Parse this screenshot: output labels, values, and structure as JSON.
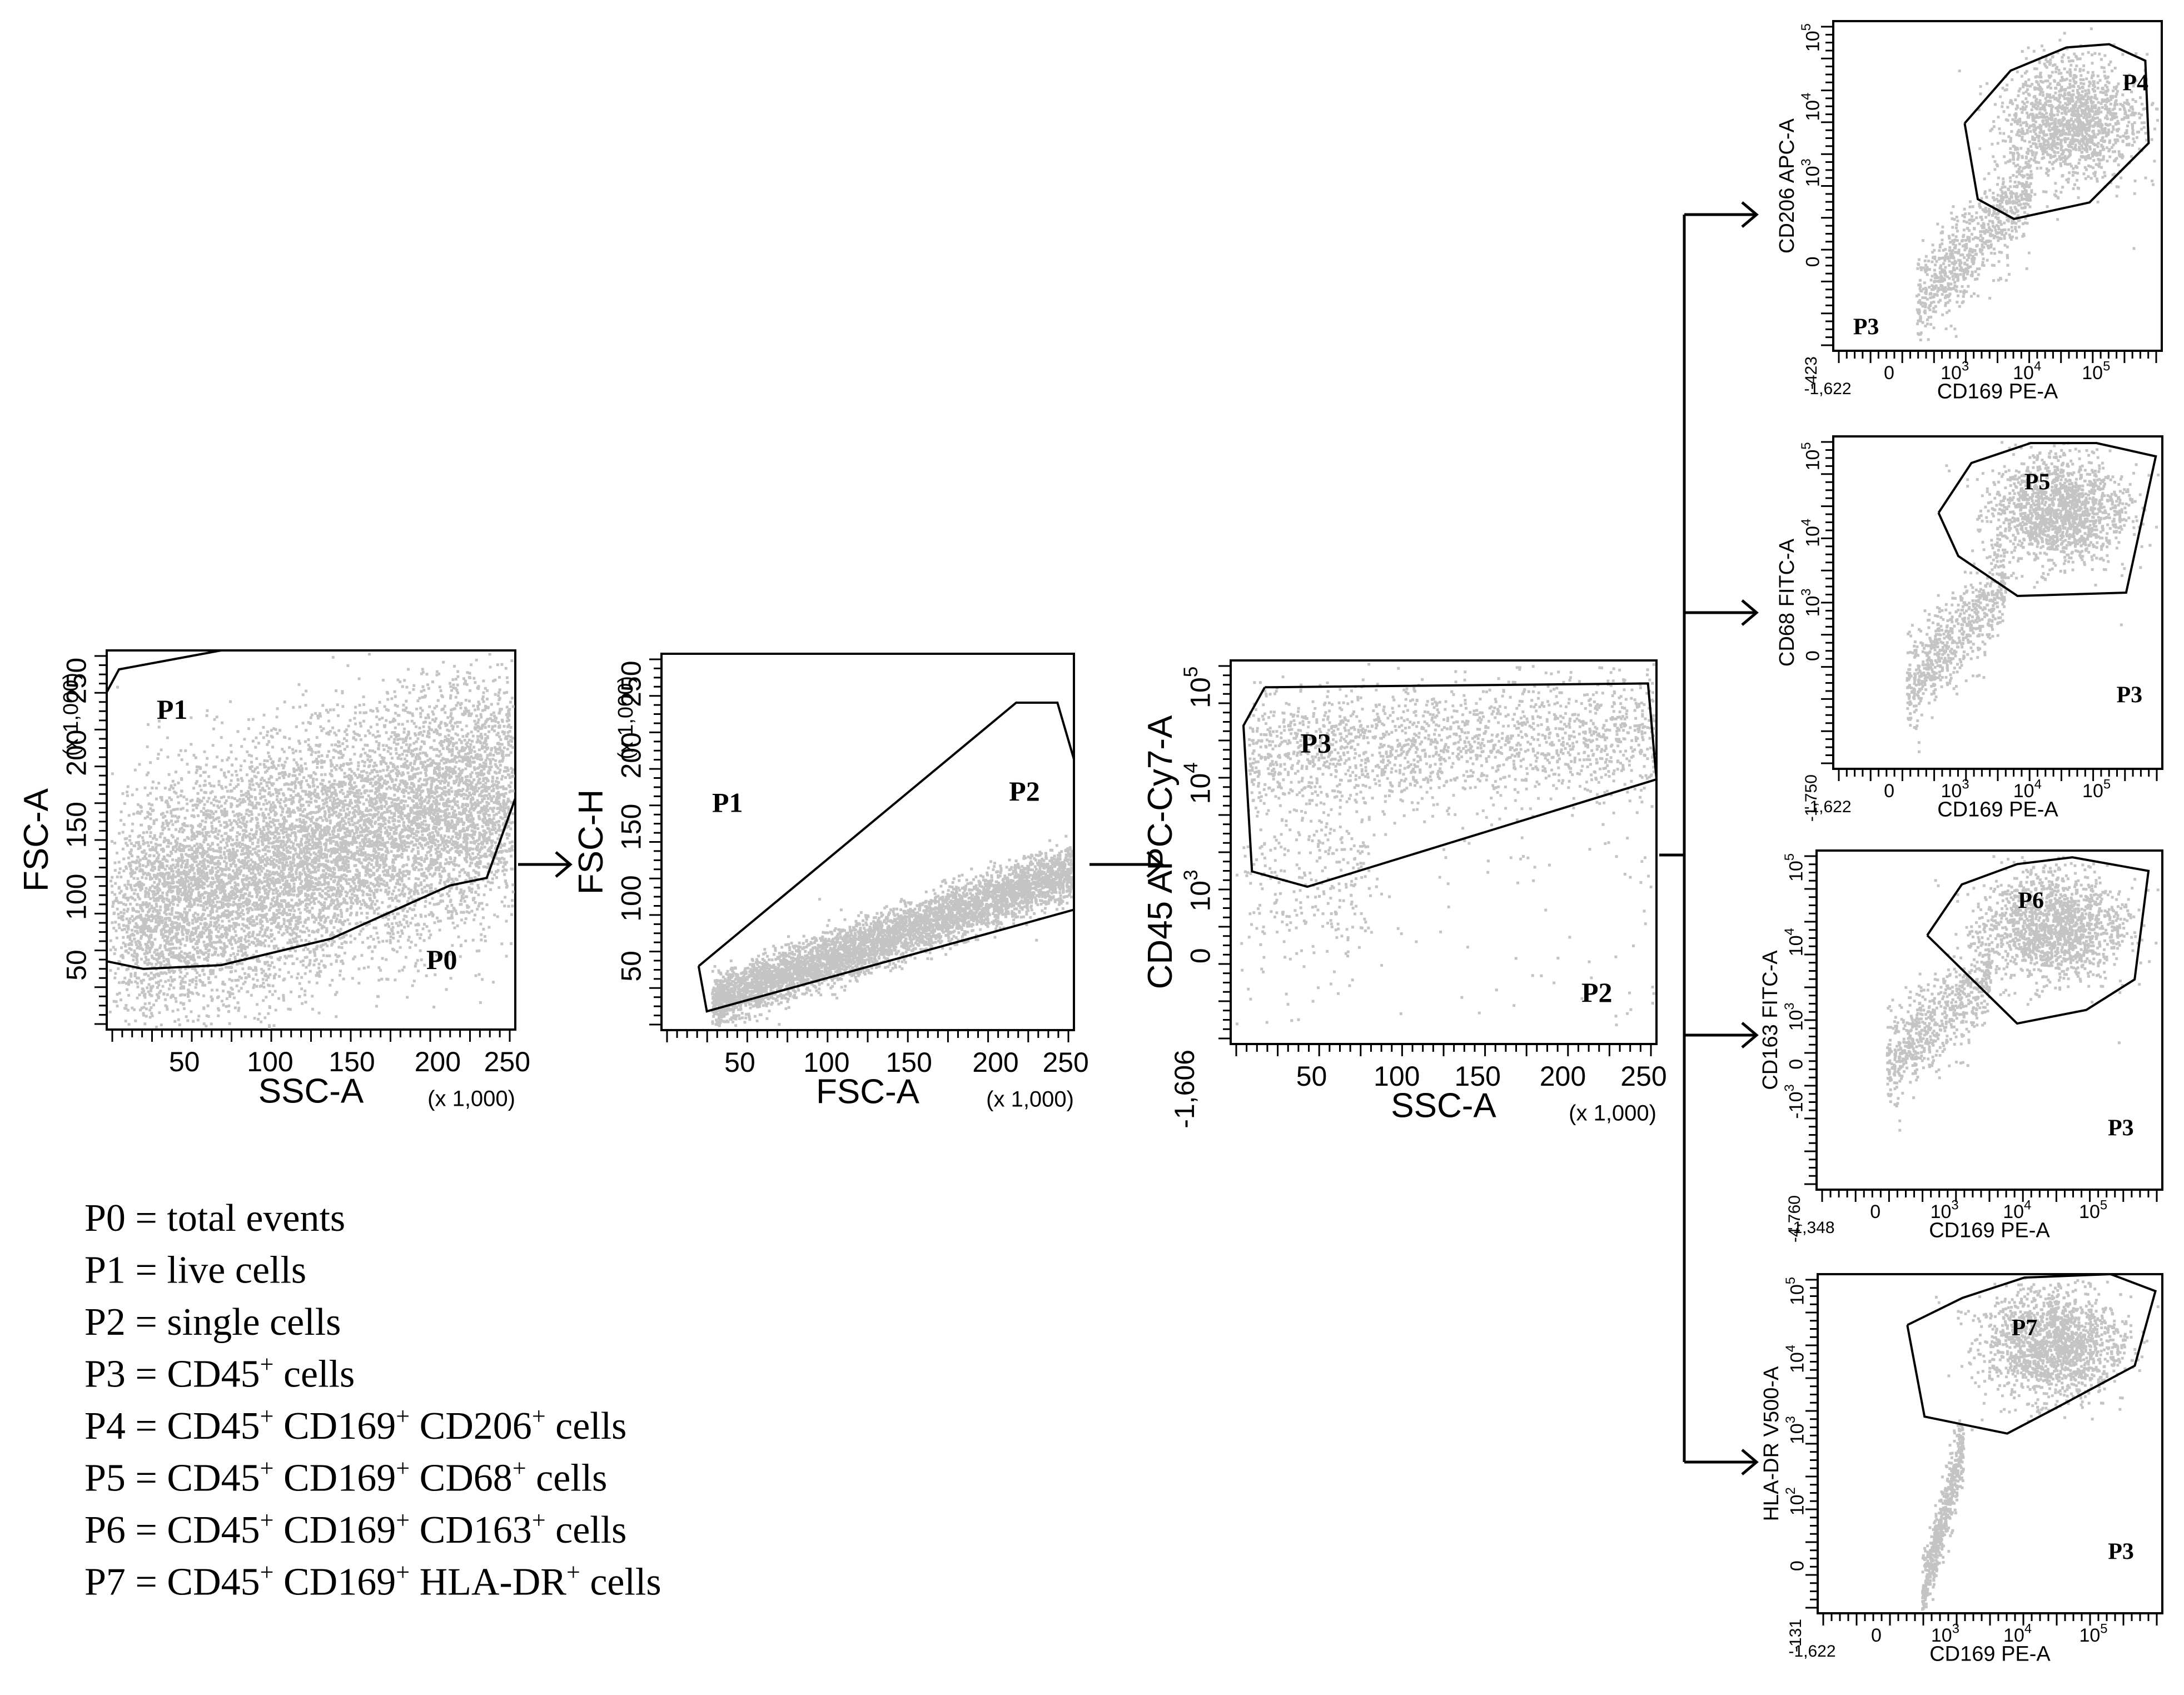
{
  "plots": [
    {
      "id": "p0",
      "x_label": "SSC-A",
      "y_label": "FSC-A",
      "x_scale_note": "(x 1,000)",
      "y_scale_note": "(x 1,000)",
      "x_ticks": [
        "50",
        "100",
        "150",
        "200",
        "250"
      ],
      "y_ticks": [
        "50",
        "100",
        "150",
        "200",
        "250"
      ],
      "gate_labels": [
        "P1",
        "P0"
      ]
    },
    {
      "id": "p1",
      "x_label": "FSC-A",
      "y_label": "FSC-H",
      "x_scale_note": "(x 1,000)",
      "y_scale_note": "(x 1,000)",
      "x_ticks": [
        "50",
        "100",
        "150",
        "200",
        "250"
      ],
      "y_ticks": [
        "50",
        "100",
        "150",
        "200",
        "250"
      ],
      "gate_labels": [
        "P1",
        "P2"
      ]
    },
    {
      "id": "p2",
      "x_label": "SSC-A",
      "y_label": "CD45 APC-Cy7-A",
      "x_scale_note": "(x 1,000)",
      "x_ticks": [
        "50",
        "100",
        "150",
        "200",
        "250"
      ],
      "y_ticks": [
        "10^5",
        "10^4",
        "10^3",
        "0"
      ],
      "y_min_label": "-1,606",
      "gate_labels": [
        "P3",
        "P2"
      ]
    },
    {
      "id": "p4",
      "x_label": "CD169 PE-A",
      "y_label": "CD206 APC-A",
      "x_min_label": "-1,622",
      "y_min_label": "-423",
      "x_ticks": [
        "0",
        "10^3",
        "10^4",
        "10^5"
      ],
      "y_ticks": [
        "10^5",
        "10^4",
        "10^3",
        "0"
      ],
      "gate_labels": [
        "P4",
        "P3"
      ]
    },
    {
      "id": "p5",
      "x_label": "CD169 PE-A",
      "y_label": "CD68 FITC-A",
      "x_min_label": "-1,622",
      "y_min_label": "-1,750",
      "x_ticks": [
        "0",
        "10^3",
        "10^4",
        "10^5"
      ],
      "y_ticks": [
        "10^5",
        "10^4",
        "10^3",
        "0"
      ],
      "gate_labels": [
        "P5",
        "P3"
      ]
    },
    {
      "id": "p6",
      "x_label": "CD169 PE-A",
      "y_label": "CD163 FITC-A",
      "x_min_label": "-1,348",
      "y_min_label": "-4,760",
      "x_ticks": [
        "0",
        "10^3",
        "10^4",
        "10^5"
      ],
      "y_ticks": [
        "10^5",
        "10^4",
        "10^3",
        "0",
        "-10^3"
      ],
      "gate_labels": [
        "P6",
        "P3"
      ]
    },
    {
      "id": "p7",
      "x_label": "CD169 PE-A",
      "y_label": "HLA-DR V500-A",
      "x_min_label": "-1,622",
      "y_min_label": "-131",
      "x_ticks": [
        "0",
        "10^3",
        "10^4",
        "10^5"
      ],
      "y_ticks": [
        "10^5",
        "10^4",
        "10^3",
        "10^2",
        "0"
      ],
      "gate_labels": [
        "P7",
        "P3"
      ]
    }
  ],
  "legend": [
    {
      "pre": "P0 = total events",
      "parts": []
    },
    {
      "pre": "P1 = live cells",
      "parts": []
    },
    {
      "pre": "P2 = single cells",
      "parts": []
    },
    {
      "pre": "P3 = CD45",
      "parts": [
        {
          "sup": "+"
        },
        {
          "text": " cells"
        }
      ]
    },
    {
      "pre": "P4 = CD45",
      "parts": [
        {
          "sup": "+"
        },
        {
          "text": " CD169"
        },
        {
          "sup": "+"
        },
        {
          "text": " CD206"
        },
        {
          "sup": "+"
        },
        {
          "text": "  cells"
        }
      ]
    },
    {
      "pre": "P5 = CD45",
      "parts": [
        {
          "sup": "+"
        },
        {
          "text": " CD169"
        },
        {
          "sup": "+"
        },
        {
          "text": " CD68"
        },
        {
          "sup": "+"
        },
        {
          "text": "  cells"
        }
      ]
    },
    {
      "pre": "P6 = CD45",
      "parts": [
        {
          "sup": "+"
        },
        {
          "text": " CD169"
        },
        {
          "sup": "+"
        },
        {
          "text": " CD163"
        },
        {
          "sup": "+"
        },
        {
          "text": "  cells"
        }
      ]
    },
    {
      "pre": "P7 = CD45",
      "parts": [
        {
          "sup": "+"
        },
        {
          "text": " CD169"
        },
        {
          "sup": "+"
        },
        {
          "text": " HLA-DR"
        },
        {
          "sup": "+"
        },
        {
          "text": " cells"
        }
      ]
    }
  ]
}
